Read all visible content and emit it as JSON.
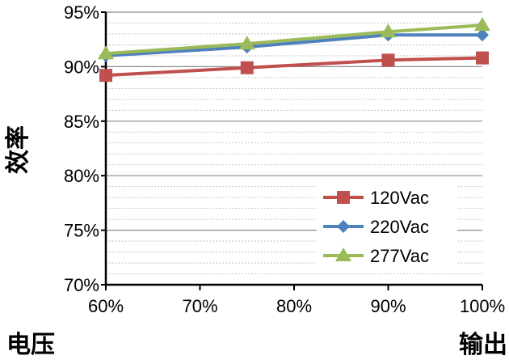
{
  "chart_data": {
    "type": "line",
    "title": "",
    "xlabel": "输出",
    "xlabel_left_partial": "电压",
    "ylabel": "效率",
    "categories": [
      "60%",
      "70%",
      "80%",
      "90%",
      "100%"
    ],
    "y_ticks": [
      "70%",
      "75%",
      "80%",
      "85%",
      "90%",
      "95%"
    ],
    "ylim": [
      70,
      95
    ],
    "grid": true,
    "legend": "bottom-right",
    "series": [
      {
        "name": "120Vac",
        "color": "#c0504d",
        "marker": "square",
        "x": [
          60,
          75,
          90,
          100
        ],
        "values": [
          89.2,
          89.9,
          90.6,
          90.8
        ]
      },
      {
        "name": "220Vac",
        "color": "#4f81bd",
        "marker": "diamond",
        "x": [
          60,
          75,
          90,
          100
        ],
        "values": [
          91.0,
          91.8,
          92.9,
          92.9
        ]
      },
      {
        "name": "277Vac",
        "color": "#9bbb59",
        "marker": "triangle",
        "x": [
          60,
          75,
          90,
          100
        ],
        "values": [
          91.2,
          92.1,
          93.2,
          93.8
        ]
      }
    ]
  }
}
